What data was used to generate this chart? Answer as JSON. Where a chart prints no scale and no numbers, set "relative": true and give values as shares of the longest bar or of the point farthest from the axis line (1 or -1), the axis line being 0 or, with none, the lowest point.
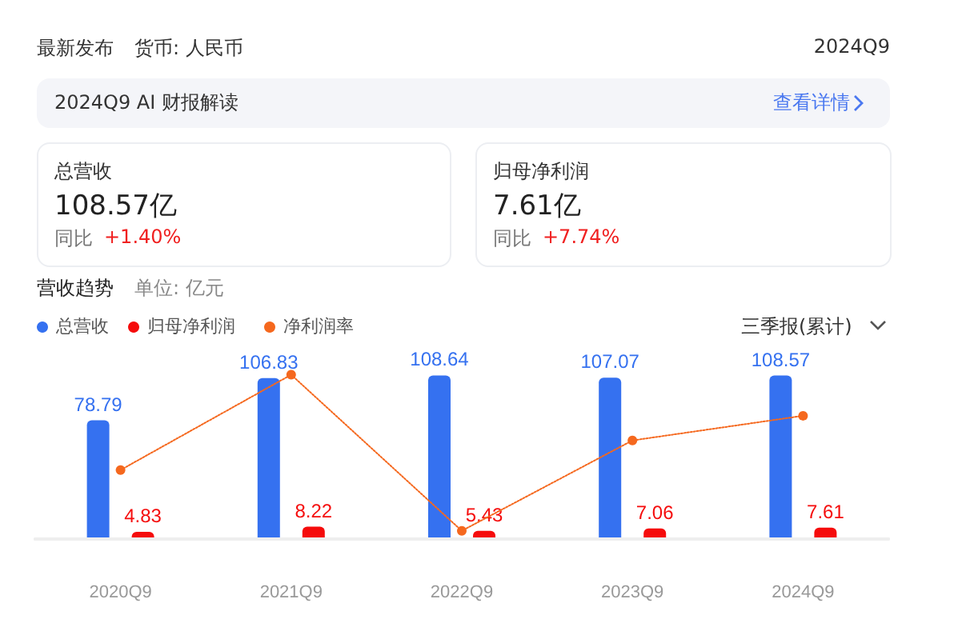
{
  "chart_data": [
    {
      "type": "bar",
      "title": "营收趋势",
      "subtitle": "单位: 亿元",
      "annotations": [
        "最新发布",
        "货币: 人民币",
        "2024Q9",
        "2024Q9 AI 财报解读",
        "查看详情",
        "总营收",
        "108.57亿",
        "同比",
        "+1.40%",
        "归母净利润",
        "7.61亿",
        "同比",
        "+7.74%",
        "三季报(累计)"
      ],
      "categories": [
        "2020Q9",
        "2021Q9",
        "2022Q9",
        "2023Q9",
        "2024Q9"
      ],
      "series": [
        {
          "name": "总营收",
          "color": "#3571f0",
          "values": [
            78.79,
            106.83,
            108.64,
            107.07,
            108.57
          ]
        },
        {
          "name": "归母净利润",
          "color": "#f50c0c",
          "values": [
            4.83,
            8.22,
            5.43,
            7.06,
            7.61
          ]
        }
      ],
      "data_labels": true,
      "legend": "top left",
      "grid": false,
      "tick_labels": "x"
    },
    {
      "type": "line",
      "relative": true,
      "tick_labels": false,
      "categories": [
        null,
        null,
        null,
        null,
        null
      ],
      "series": [
        {
          "name": "净利润率",
          "color": "#f5681e",
          "values": [
            0.42,
            1,
            0.05,
            0.6,
            0.75
          ]
        }
      ],
      "marker": "circle",
      "line_style": "dotted",
      "legend": "top left",
      "grid": false
    }
  ]
}
